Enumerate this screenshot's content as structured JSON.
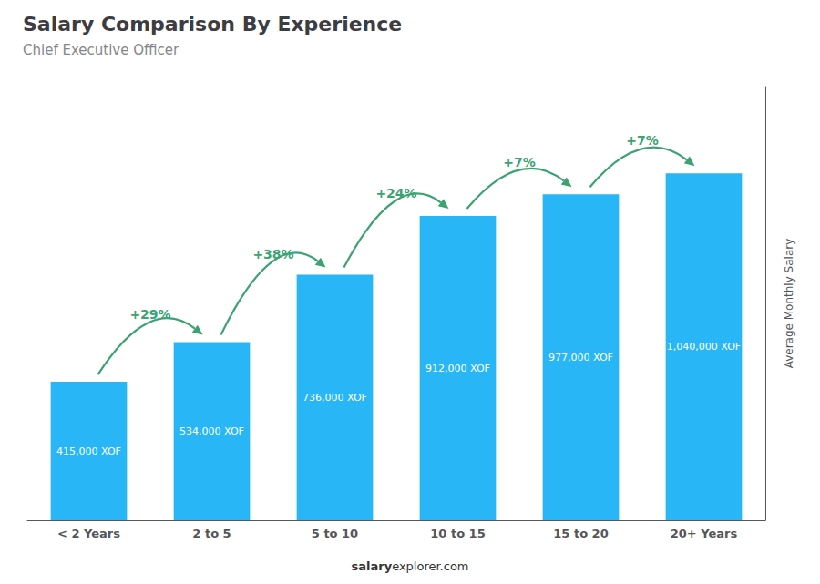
{
  "chart_data": {
    "type": "bar",
    "title": "Salary Comparison By Experience",
    "subtitle": "Chief Executive Officer",
    "ylabel": "Average Monthly Salary",
    "categories": [
      "< 2 Years",
      "2 to 5",
      "5 to 10",
      "10 to 15",
      "15 to 20",
      "20+ Years"
    ],
    "values": [
      415000,
      534000,
      736000,
      912000,
      977000,
      1040000
    ],
    "value_labels": [
      "415,000 XOF",
      "534,000 XOF",
      "736,000 XOF",
      "912,000 XOF",
      "977,000 XOF",
      "1,040,000 XOF"
    ],
    "data_labels": true,
    "color": "#29b6f6",
    "ylim": [
      0,
      1300000
    ],
    "tick_labels": "x",
    "grid": false,
    "annotations": [
      {
        "text": "+29%",
        "from": "< 2 Years",
        "to": "2 to 5"
      },
      {
        "text": "+38%",
        "from": "2 to 5",
        "to": "5 to 10"
      },
      {
        "text": "+24%",
        "from": "5 to 10",
        "to": "10 to 15"
      },
      {
        "text": "+7%",
        "from": "10 to 15",
        "to": "15 to 20"
      },
      {
        "text": "+7%",
        "from": "15 to 20",
        "to": "20+ Years"
      }
    ],
    "footer": [
      "salary",
      "explorer.com"
    ]
  }
}
